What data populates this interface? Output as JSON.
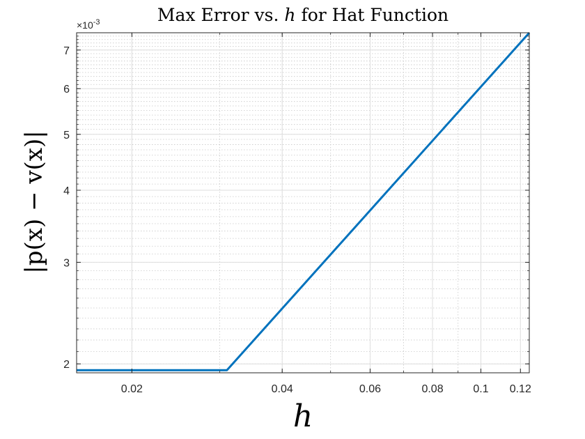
{
  "chart_data": {
    "type": "line",
    "title": {
      "prefix": "Max Error vs. ",
      "variable": "h",
      "suffix": " for Hat Function"
    },
    "xlabel": "h",
    "ylabel": "|p(x) − v(x)|",
    "x_scale": "log",
    "y_scale": "log",
    "xlim": [
      0.0155,
      0.125
    ],
    "ylim": [
      1.93,
      7.5
    ],
    "y_multiplier_label": "×10",
    "y_multiplier_exponent": "-3",
    "x_ticks": [
      {
        "value": 0.02,
        "label": "0.02"
      },
      {
        "value": 0.04,
        "label": "0.04"
      },
      {
        "value": 0.06,
        "label": "0.06"
      },
      {
        "value": 0.08,
        "label": "0.08"
      },
      {
        "value": 0.1,
        "label": "0.1"
      },
      {
        "value": 0.12,
        "label": "0.12"
      }
    ],
    "y_ticks": [
      {
        "value": 2,
        "label": "2"
      },
      {
        "value": 3,
        "label": "3"
      },
      {
        "value": 4,
        "label": "4"
      },
      {
        "value": 5,
        "label": "5"
      },
      {
        "value": 6,
        "label": "6"
      },
      {
        "value": 7,
        "label": "7"
      }
    ],
    "grid": true,
    "minor_grid": true,
    "series": [
      {
        "color": "#0072BD",
        "x": [
          0.0155,
          0.031,
          0.125
        ],
        "y": [
          1.95,
          1.95,
          7.5
        ]
      }
    ]
  }
}
